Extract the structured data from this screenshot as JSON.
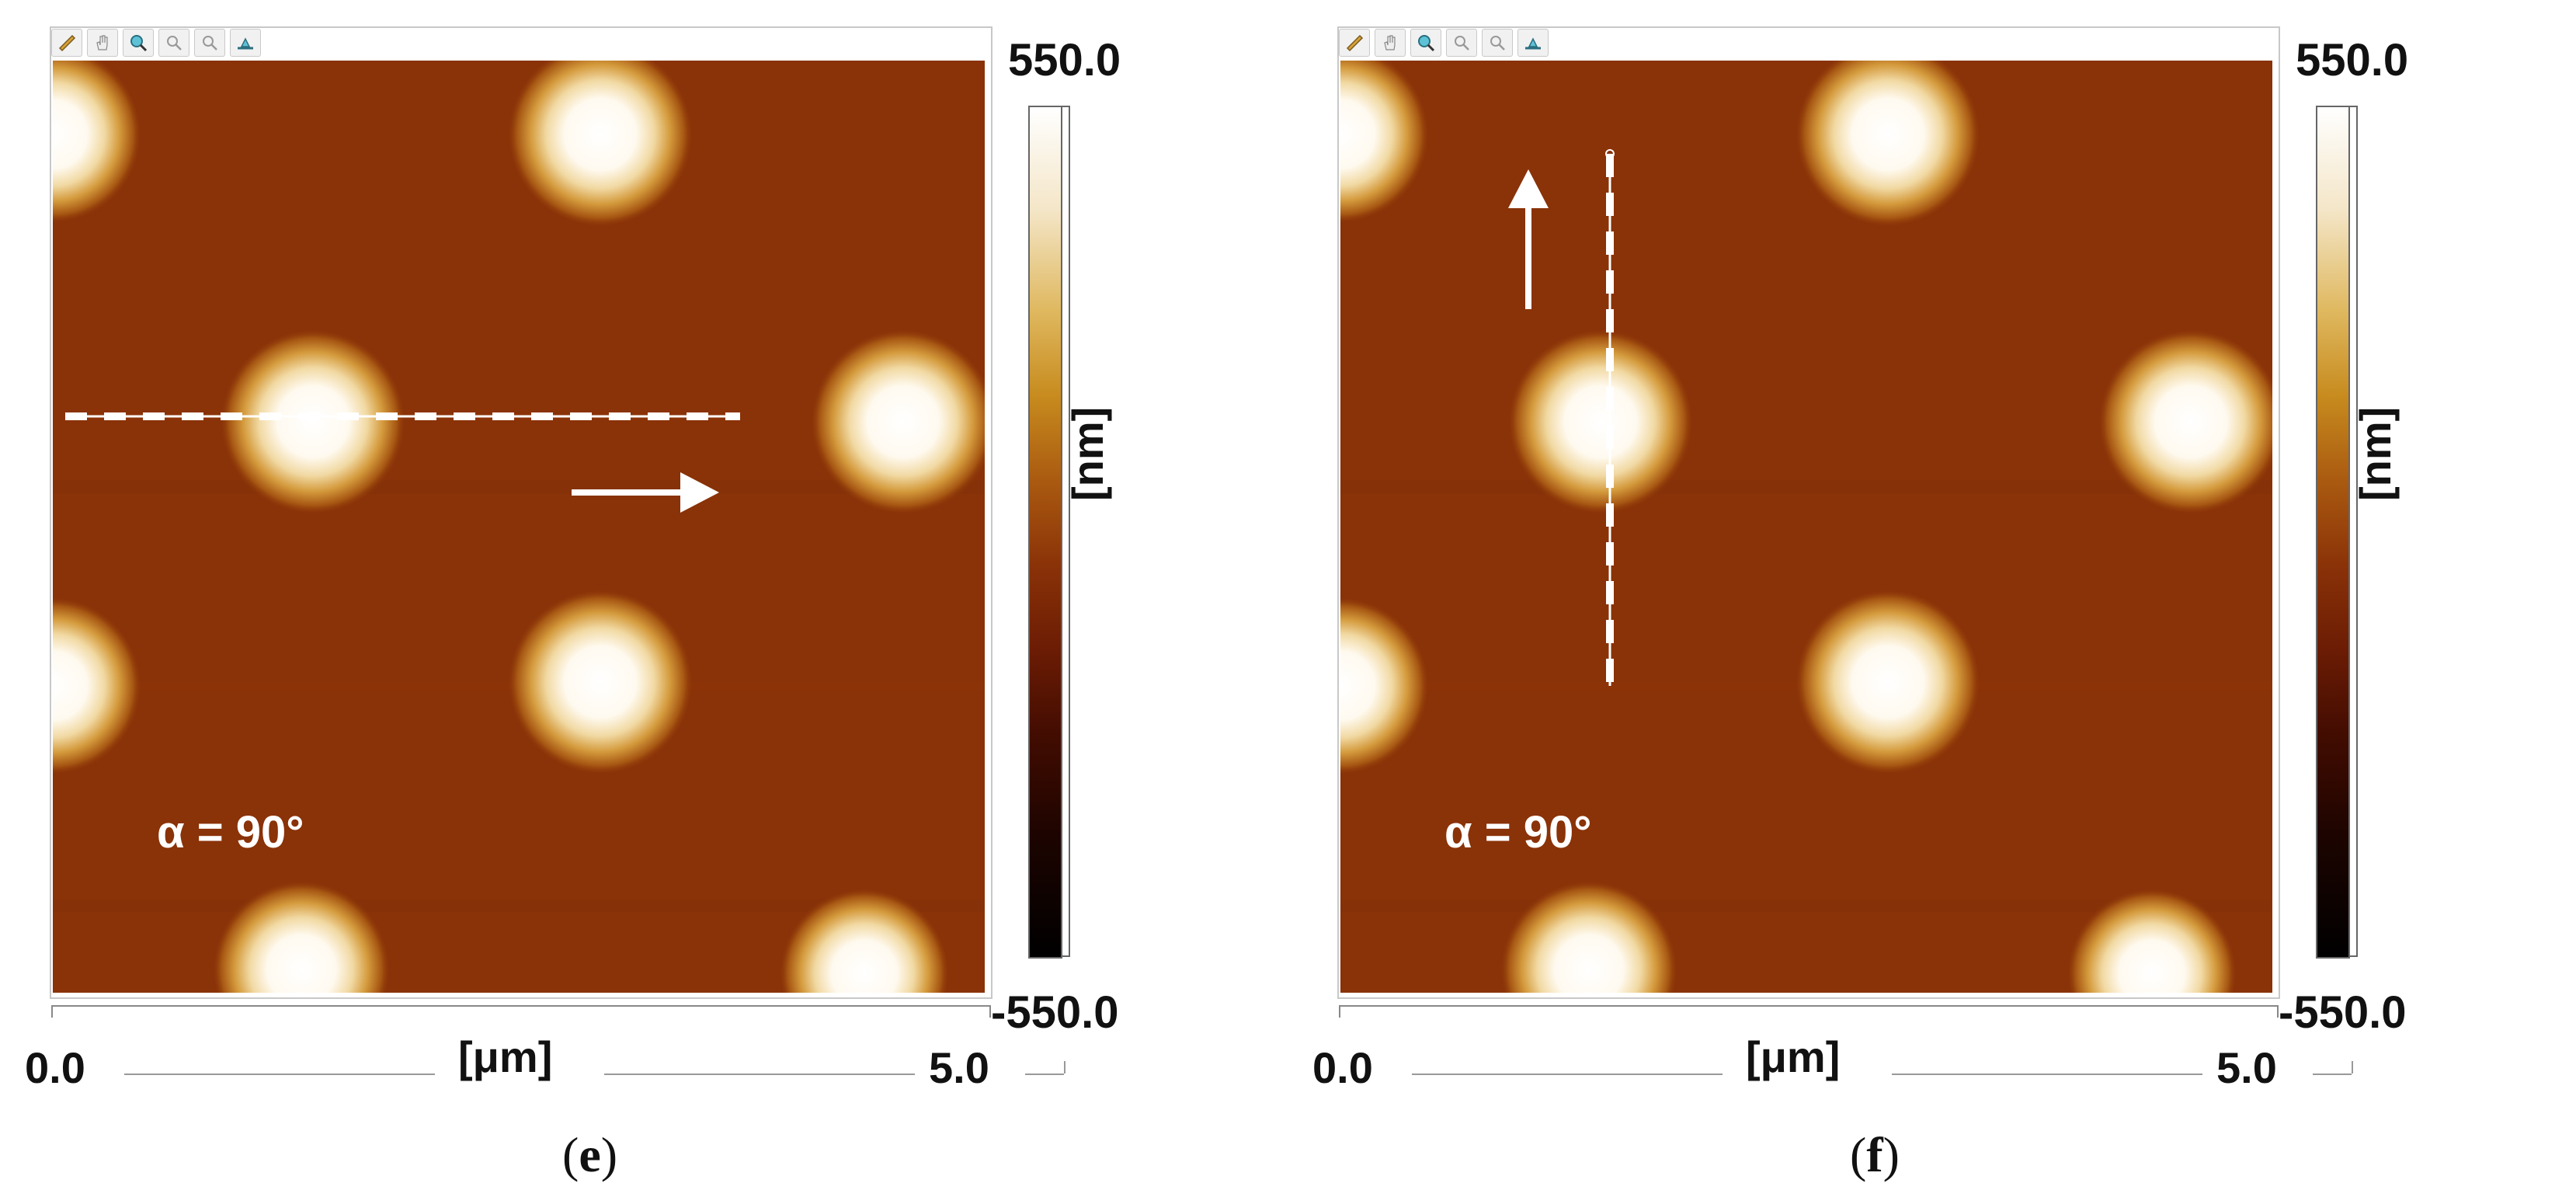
{
  "panels": [
    {
      "caption_open": "(",
      "caption_letter": "e",
      "caption_close": ")",
      "colorbar": {
        "max": "550.0",
        "min": "-550.0",
        "unit": "[nm]"
      },
      "xaxis": {
        "start": "0.0",
        "end": "5.0",
        "unit": "[μm]"
      },
      "annotation": "α = 90°",
      "scan_direction": "horizontal"
    },
    {
      "caption_open": "(",
      "caption_letter": "f",
      "caption_close": ")",
      "colorbar": {
        "max": "550.0",
        "min": "-550.0",
        "unit": "[nm]"
      },
      "xaxis": {
        "start": "0.0",
        "end": "5.0",
        "unit": "[μm]"
      },
      "annotation": "α = 90°",
      "scan_direction": "vertical"
    }
  ],
  "toolbar_icons": [
    "ruler-icon",
    "hand-icon",
    "zoom-icon",
    "zoom-in-icon",
    "zoom-out-icon",
    "level-icon"
  ],
  "colors": {
    "substrate": "#8a3208",
    "feature_peak": "#ffffff",
    "feature_mid": "#d7a04a"
  }
}
